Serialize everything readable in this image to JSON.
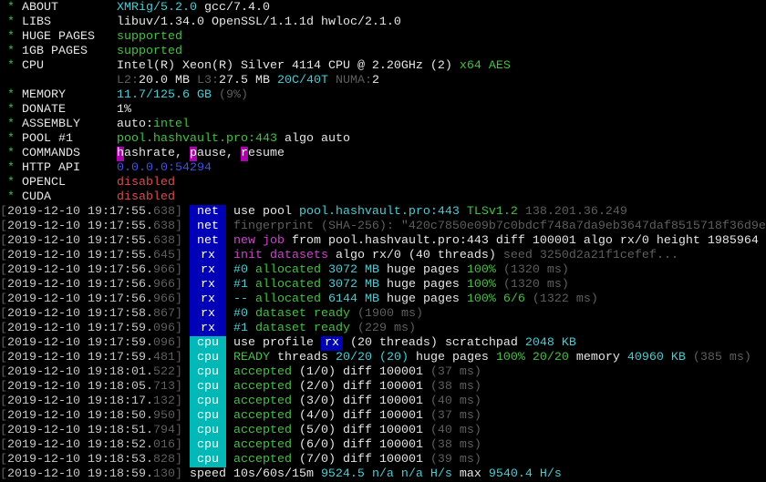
{
  "colors": {
    "net_tag": "#0000b8",
    "rx_tag": "#0000b8",
    "cpu_tag": "#00b8b8",
    "cyan": "#3fd0d8",
    "green": "#3ec43e",
    "gray": "#5e5e5e",
    "magenta": "#d040d0",
    "blue": "#4050e8",
    "red": "#e04848"
  },
  "header": [
    {
      "label": "ABOUT",
      "segs": [
        [
          "XMRig/5.2.0",
          "c"
        ],
        [
          " gcc/7.4.0",
          "w"
        ]
      ]
    },
    {
      "label": "LIBS",
      "segs": [
        [
          "libuv/1.34.0 OpenSSL/1.1.1d hwloc/2.1.0",
          "w"
        ]
      ]
    },
    {
      "label": "HUGE PAGES",
      "segs": [
        [
          "supported",
          "g"
        ]
      ]
    },
    {
      "label": "1GB PAGES",
      "segs": [
        [
          "supported",
          "g"
        ]
      ]
    },
    {
      "label": "CPU",
      "segs": [
        [
          "Intel(R) Xeon(R) Silver 4114 CPU @ 2.20GHz (2) ",
          "w"
        ],
        [
          "x64 AES",
          "g"
        ]
      ]
    },
    {
      "label": "",
      "segs": [
        [
          "L2:",
          "d"
        ],
        [
          "20.0 MB ",
          "w"
        ],
        [
          "L3:",
          "d"
        ],
        [
          "27.5 MB ",
          "w"
        ],
        [
          "20C/40T ",
          "c"
        ],
        [
          "NUMA:",
          "d"
        ],
        [
          "2",
          "w"
        ]
      ]
    },
    {
      "label": "MEMORY",
      "segs": [
        [
          "11.7/125.6 GB ",
          "c"
        ],
        [
          "(9%)",
          "d"
        ]
      ]
    },
    {
      "label": "DONATE",
      "segs": [
        [
          "1%",
          "w"
        ]
      ]
    },
    {
      "label": "ASSEMBLY",
      "segs": [
        [
          "auto:",
          "w"
        ],
        [
          "intel",
          "g"
        ]
      ]
    },
    {
      "label": "POOL #1",
      "segs": [
        [
          "pool.hashvault.pro:443",
          "g"
        ],
        [
          " algo auto",
          "w"
        ]
      ]
    },
    {
      "label": "COMMANDS",
      "segs": [
        [
          "h",
          "hl"
        ],
        [
          "ashrate, ",
          "w"
        ],
        [
          "p",
          "hl"
        ],
        [
          "ause, ",
          "w"
        ],
        [
          "r",
          "hl"
        ],
        [
          "esume",
          "w"
        ]
      ]
    },
    {
      "label": "HTTP API",
      "segs": [
        [
          "0.0.0.0:54294",
          "b"
        ]
      ]
    },
    {
      "label": "OPENCL",
      "segs": [
        [
          "disabled",
          "r"
        ]
      ]
    },
    {
      "label": "CUDA",
      "segs": [
        [
          "disabled",
          "r"
        ]
      ]
    }
  ],
  "log": [
    {
      "ts": "2019-12-10 19:17:55.",
      "ms": "638",
      "tag": "net",
      "segs": [
        [
          "use pool ",
          "w"
        ],
        [
          "pool.hashvault.pro:443 ",
          "c"
        ],
        [
          "TLSv1.2 ",
          "g"
        ],
        [
          "138.201.36.249",
          "d"
        ]
      ]
    },
    {
      "ts": "2019-12-10 19:17:55.",
      "ms": "638",
      "tag": "net",
      "segs": [
        [
          "fingerprint (SHA-256): \"420c7850e09b7c0bdcf748a7da9eb3647daf8515718f36d9e",
          "d"
        ]
      ]
    },
    {
      "ts": "2019-12-10 19:17:55.",
      "ms": "638",
      "tag": "net",
      "segs": [
        [
          "new job",
          "m"
        ],
        [
          " from pool.hashvault.pro:443 diff 100001 algo rx/0 height 1985964",
          "w"
        ]
      ]
    },
    {
      "ts": "2019-12-10 19:17:55.",
      "ms": "645",
      "tag": "rx",
      "segs": [
        [
          "init datasets",
          "m"
        ],
        [
          " algo rx/0 (40 threads) ",
          "w"
        ],
        [
          "seed 3250d2a21f1cefef...",
          "d"
        ]
      ]
    },
    {
      "ts": "2019-12-10 19:17:56.",
      "ms": "966",
      "tag": "rx",
      "segs": [
        [
          "#0 ",
          "c"
        ],
        [
          "allocated ",
          "g"
        ],
        [
          "3072 MB ",
          "c"
        ],
        [
          "huge pages ",
          "w"
        ],
        [
          "100% ",
          "g"
        ],
        [
          "(1320 ms)",
          "d"
        ]
      ]
    },
    {
      "ts": "2019-12-10 19:17:56.",
      "ms": "966",
      "tag": "rx",
      "segs": [
        [
          "#1 ",
          "c"
        ],
        [
          "allocated ",
          "g"
        ],
        [
          "3072 MB ",
          "c"
        ],
        [
          "huge pages ",
          "w"
        ],
        [
          "100% ",
          "g"
        ],
        [
          "(1320 ms)",
          "d"
        ]
      ]
    },
    {
      "ts": "2019-12-10 19:17:56.",
      "ms": "966",
      "tag": "rx",
      "segs": [
        [
          "-- ",
          "c"
        ],
        [
          "allocated ",
          "g"
        ],
        [
          "6144 MB ",
          "c"
        ],
        [
          "huge pages ",
          "w"
        ],
        [
          "100% 6/6 ",
          "g"
        ],
        [
          "(1322 ms)",
          "d"
        ]
      ]
    },
    {
      "ts": "2019-12-10 19:17:58.",
      "ms": "867",
      "tag": "rx",
      "segs": [
        [
          "#0 ",
          "c"
        ],
        [
          "dataset ready ",
          "g"
        ],
        [
          "(1900 ms)",
          "d"
        ]
      ]
    },
    {
      "ts": "2019-12-10 19:17:59.",
      "ms": "096",
      "tag": "rx",
      "segs": [
        [
          "#1 ",
          "c"
        ],
        [
          "dataset ready ",
          "g"
        ],
        [
          "(229 ms)",
          "d"
        ]
      ]
    },
    {
      "ts": "2019-12-10 19:17:59.",
      "ms": "096",
      "tag": "cpu",
      "segs": [
        [
          "use profile ",
          "w"
        ],
        [
          "rx",
          "inbox"
        ],
        [
          " (20 threads) ",
          "w"
        ],
        [
          "scratchpad ",
          "w"
        ],
        [
          "2048 KB",
          "c"
        ]
      ]
    },
    {
      "ts": "2019-12-10 19:17:59.",
      "ms": "481",
      "tag": "cpu",
      "segs": [
        [
          "READY",
          "g"
        ],
        [
          " threads ",
          "w"
        ],
        [
          "20/20 ",
          "c"
        ],
        [
          "(20) ",
          "c"
        ],
        [
          "huge pages ",
          "w"
        ],
        [
          "100% 20/20 ",
          "g"
        ],
        [
          "memory ",
          "w"
        ],
        [
          "40960 KB ",
          "c"
        ],
        [
          "(385 ms)",
          "d"
        ]
      ]
    },
    {
      "ts": "2019-12-10 19:18:01.",
      "ms": "522",
      "tag": "cpu",
      "segs": [
        [
          "accepted",
          "g"
        ],
        [
          " (1/0) diff 100001 ",
          "w"
        ],
        [
          "(37 ms)",
          "d"
        ]
      ]
    },
    {
      "ts": "2019-12-10 19:18:05.",
      "ms": "713",
      "tag": "cpu",
      "segs": [
        [
          "accepted",
          "g"
        ],
        [
          " (2/0) diff 100001 ",
          "w"
        ],
        [
          "(38 ms)",
          "d"
        ]
      ]
    },
    {
      "ts": "2019-12-10 19:18:17.",
      "ms": "132",
      "tag": "cpu",
      "segs": [
        [
          "accepted",
          "g"
        ],
        [
          " (3/0) diff 100001 ",
          "w"
        ],
        [
          "(40 ms)",
          "d"
        ]
      ]
    },
    {
      "ts": "2019-12-10 19:18:50.",
      "ms": "950",
      "tag": "cpu",
      "segs": [
        [
          "accepted",
          "g"
        ],
        [
          " (4/0) diff 100001 ",
          "w"
        ],
        [
          "(37 ms)",
          "d"
        ]
      ]
    },
    {
      "ts": "2019-12-10 19:18:51.",
      "ms": "794",
      "tag": "cpu",
      "segs": [
        [
          "accepted",
          "g"
        ],
        [
          " (5/0) diff 100001 ",
          "w"
        ],
        [
          "(40 ms)",
          "d"
        ]
      ]
    },
    {
      "ts": "2019-12-10 19:18:52.",
      "ms": "016",
      "tag": "cpu",
      "segs": [
        [
          "accepted",
          "g"
        ],
        [
          " (6/0) diff 100001 ",
          "w"
        ],
        [
          "(38 ms)",
          "d"
        ]
      ]
    },
    {
      "ts": "2019-12-10 19:18:53.",
      "ms": "828",
      "tag": "cpu",
      "segs": [
        [
          "accepted",
          "g"
        ],
        [
          " (7/0) diff 100001 ",
          "w"
        ],
        [
          "(39 ms)",
          "d"
        ]
      ]
    },
    {
      "ts": "2019-12-10 19:18:59.",
      "ms": "130",
      "tag": "",
      "segs": [
        [
          "speed 10s/60s/15m ",
          "w"
        ],
        [
          "9524.5 ",
          "c"
        ],
        [
          "n/a n/a H/s ",
          "c"
        ],
        [
          "max ",
          "w"
        ],
        [
          "9540.4 H/s",
          "c"
        ]
      ]
    }
  ]
}
